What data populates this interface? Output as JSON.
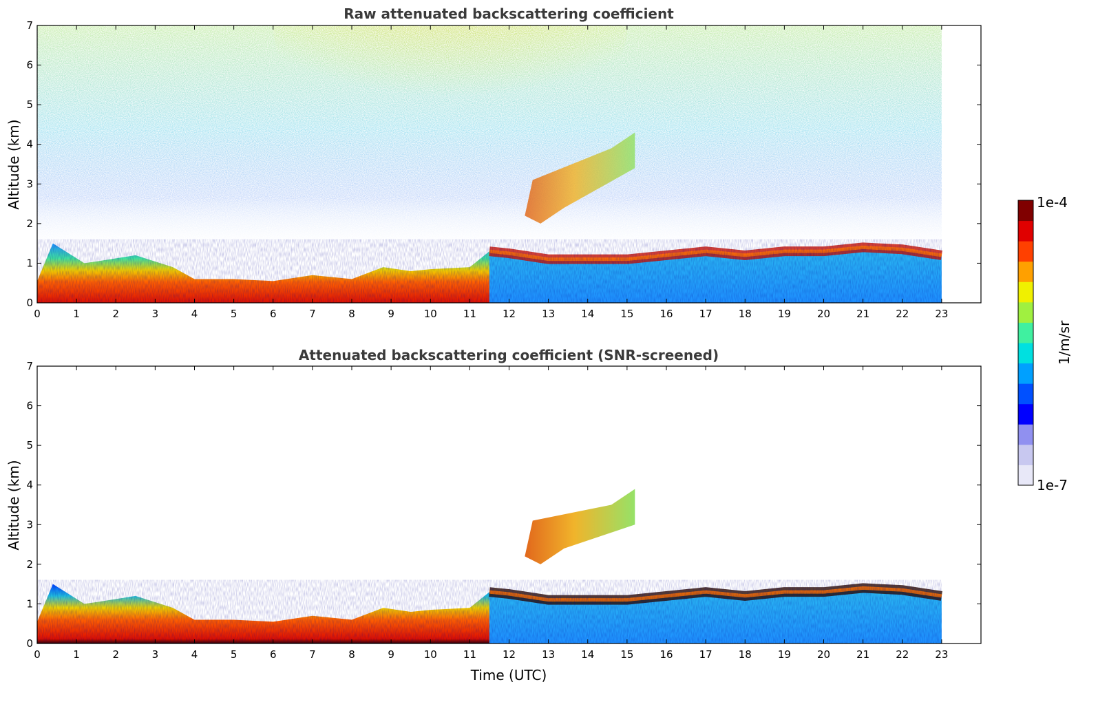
{
  "chart_data": [
    {
      "type": "heatmap",
      "title": "Raw attenuated backscattering coefficient",
      "xlabel": "",
      "ylabel": "Altitude (km)",
      "xlim": [
        0,
        24
      ],
      "ylim": [
        0,
        7
      ],
      "x_ticks": [
        "0",
        "1",
        "2",
        "3",
        "4",
        "5",
        "6",
        "7",
        "8",
        "9",
        "10",
        "11",
        "12",
        "13",
        "14",
        "15",
        "16",
        "17",
        "18",
        "19",
        "20",
        "21",
        "22",
        "23"
      ],
      "y_ticks": [
        "0",
        "1",
        "2",
        "3",
        "4",
        "5",
        "6",
        "7"
      ],
      "data_extent_hours": [
        0,
        23
      ],
      "mixing_layer_top_km": [
        [
          0,
          0.55
        ],
        [
          0.4,
          1.5
        ],
        [
          1.2,
          1.0
        ],
        [
          1.55,
          1.05
        ],
        [
          2.5,
          1.2
        ],
        [
          3.45,
          0.9
        ],
        [
          4,
          0.6
        ],
        [
          5,
          0.6
        ],
        [
          6,
          0.55
        ],
        [
          7,
          0.7
        ],
        [
          8,
          0.6
        ],
        [
          8.8,
          0.9
        ],
        [
          9.5,
          0.8
        ],
        [
          10,
          0.85
        ],
        [
          11,
          0.9
        ],
        [
          11.5,
          1.3
        ],
        [
          12,
          1.25
        ],
        [
          13,
          1.1
        ],
        [
          14,
          1.1
        ],
        [
          15,
          1.1
        ],
        [
          16,
          1.2
        ],
        [
          17,
          1.3
        ],
        [
          18,
          1.2
        ],
        [
          19,
          1.3
        ],
        [
          20,
          1.3
        ],
        [
          21,
          1.4
        ],
        [
          22,
          1.35
        ],
        [
          23,
          1.2
        ]
      ],
      "elevated_layer": {
        "x_range_hours": [
          12.4,
          15.2
        ],
        "altitude_range_km": [
          2.0,
          4.3
        ]
      }
    },
    {
      "type": "heatmap",
      "title": "Attenuated backscattering coefficient (SNR-screened)",
      "xlabel": "Time (UTC)",
      "ylabel": "Altitude (km)",
      "xlim": [
        0,
        24
      ],
      "ylim": [
        0,
        7
      ],
      "x_ticks": [
        "0",
        "1",
        "2",
        "3",
        "4",
        "5",
        "6",
        "7",
        "8",
        "9",
        "10",
        "11",
        "12",
        "13",
        "14",
        "15",
        "16",
        "17",
        "18",
        "19",
        "20",
        "21",
        "22",
        "23"
      ],
      "y_ticks": [
        "0",
        "1",
        "2",
        "3",
        "4",
        "5",
        "6",
        "7"
      ],
      "data_extent_hours": [
        0,
        23
      ],
      "elevated_layer": {
        "x_range_hours": [
          12.4,
          15.2
        ],
        "altitude_range_km": [
          2.0,
          3.9
        ]
      }
    }
  ],
  "colorbar": {
    "label": "1/m/sr",
    "max_label": "1e-4",
    "min_label": "1e-7",
    "scale": "log",
    "colormap": [
      "#e8e8f8",
      "#c8c8f0",
      "#9090f0",
      "#0000ff",
      "#0050ff",
      "#00a0ff",
      "#00e0e0",
      "#40f0a0",
      "#a0f040",
      "#f0f000",
      "#ffa000",
      "#ff4000",
      "#e00000",
      "#800000"
    ]
  }
}
